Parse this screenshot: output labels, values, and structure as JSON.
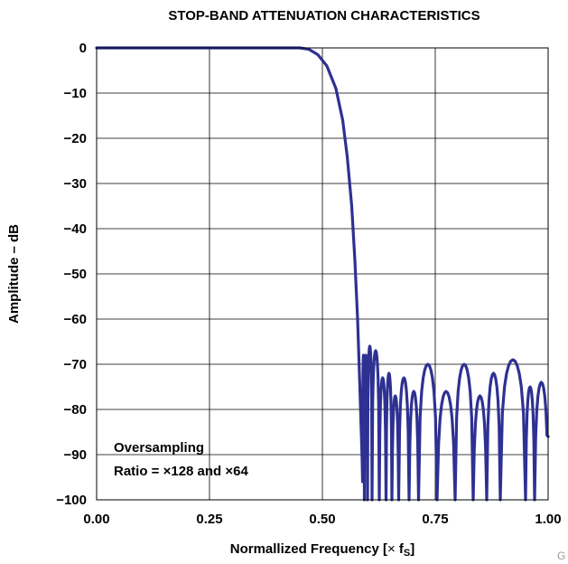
{
  "chart_data": {
    "type": "line",
    "title": "STOP-BAND ATTENUATION CHARACTERISTICS",
    "xlabel": "Normallized Frequency [× fS]",
    "xlabel_parts": {
      "main": "Normallized Frequency [",
      "times": "×",
      "f": " f",
      "sub": "S",
      "close": "]"
    },
    "ylabel": "Amplitude – dB",
    "xlim": [
      0,
      1
    ],
    "ylim": [
      -100,
      0
    ],
    "xticks": [
      0,
      0.25,
      0.5,
      0.75,
      1.0
    ],
    "xtick_labels": [
      "0.00",
      "0.25",
      "0.50",
      "0.75",
      "1.00"
    ],
    "yticks": [
      0,
      -10,
      -20,
      -30,
      -40,
      -50,
      -60,
      -70,
      -80,
      -90,
      -100
    ],
    "ytick_labels": [
      "0",
      "−10",
      "−20",
      "−30",
      "−40",
      "−50",
      "−60",
      "−70",
      "−80",
      "−90",
      "−100"
    ],
    "grid": true,
    "series_color": "#2e3192",
    "annotation": [
      "Oversampling",
      "Ratio = ×128 and ×64"
    ],
    "corner_text": "G",
    "passband": [
      [
        0,
        0
      ],
      [
        0.45,
        0
      ],
      [
        0.47,
        -0.3
      ],
      [
        0.49,
        -1.5
      ],
      [
        0.51,
        -4
      ],
      [
        0.53,
        -9
      ],
      [
        0.545,
        -16
      ],
      [
        0.555,
        -24
      ],
      [
        0.565,
        -35
      ],
      [
        0.572,
        -47
      ],
      [
        0.578,
        -60
      ],
      [
        0.583,
        -75
      ],
      [
        0.588,
        -91
      ],
      [
        0.589,
        -96
      ]
    ],
    "stopband_lobes": [
      [
        0.589,
        0.593,
        -68
      ],
      [
        0.593,
        0.6,
        -68
      ],
      [
        0.6,
        0.61,
        -66
      ],
      [
        0.61,
        0.626,
        -67
      ],
      [
        0.626,
        0.641,
        -73
      ],
      [
        0.641,
        0.654,
        -72
      ],
      [
        0.654,
        0.669,
        -77
      ],
      [
        0.669,
        0.692,
        -73
      ],
      [
        0.692,
        0.713,
        -76
      ],
      [
        0.713,
        0.754,
        -70
      ],
      [
        0.754,
        0.794,
        -76
      ],
      [
        0.794,
        0.834,
        -70
      ],
      [
        0.834,
        0.864,
        -77
      ],
      [
        0.864,
        0.894,
        -72
      ],
      [
        0.894,
        0.95,
        -69
      ],
      [
        0.95,
        0.97,
        -75
      ],
      [
        0.97,
        1.0,
        -74
      ]
    ],
    "stopband_end": -86
  }
}
